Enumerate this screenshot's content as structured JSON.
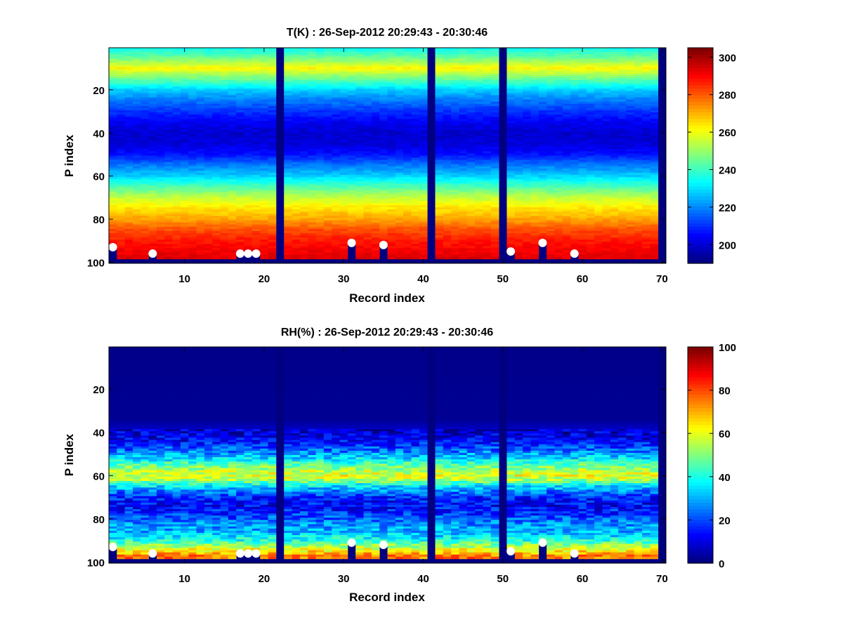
{
  "chart_data": [
    {
      "type": "heatmap",
      "title": "T(K) : 26-Sep-2012 20:29:43 - 20:30:46",
      "xlabel": "Record index",
      "ylabel": "P index",
      "xlim": [
        0.5,
        70.5
      ],
      "ylim": [
        0.5,
        100.5
      ],
      "y_reversed": true,
      "colormap": "jet",
      "clim": [
        190,
        305
      ],
      "x_ticks": [
        "10",
        "20",
        "30",
        "40",
        "50",
        "60",
        "70"
      ],
      "y_ticks": [
        "20",
        "40",
        "60",
        "80",
        "100"
      ],
      "colorbar_ticks": [
        "200",
        "220",
        "240",
        "260",
        "280",
        "300"
      ],
      "missing_records": [
        22,
        41,
        50,
        70
      ],
      "bottom_level_index": 98,
      "profile": {
        "p_index": [
          1,
          5,
          10,
          15,
          20,
          25,
          30,
          35,
          40,
          45,
          50,
          55,
          60,
          65,
          70,
          75,
          80,
          85,
          90,
          95,
          98
        ],
        "value": [
          235,
          245,
          262,
          245,
          228,
          218,
          210,
          203,
          199,
          200,
          206,
          218,
          228,
          242,
          255,
          265,
          272,
          282,
          288,
          292,
          294
        ]
      },
      "markers": [
        {
          "record": 1,
          "p_index": 93
        },
        {
          "record": 6,
          "p_index": 96
        },
        {
          "record": 17,
          "p_index": 96
        },
        {
          "record": 18,
          "p_index": 96
        },
        {
          "record": 19,
          "p_index": 96
        },
        {
          "record": 31,
          "p_index": 91
        },
        {
          "record": 35,
          "p_index": 92
        },
        {
          "record": 51,
          "p_index": 95
        },
        {
          "record": 55,
          "p_index": 91
        },
        {
          "record": 59,
          "p_index": 96
        }
      ],
      "marker_color": "#ffffff"
    },
    {
      "type": "heatmap",
      "title": "RH(%) : 26-Sep-2012 20:29:43 - 20:30:46",
      "xlabel": "Record index",
      "ylabel": "P index",
      "xlim": [
        0.5,
        70.5
      ],
      "ylim": [
        0.5,
        100.5
      ],
      "y_reversed": true,
      "colormap": "jet",
      "clim": [
        0,
        100
      ],
      "x_ticks": [
        "10",
        "20",
        "30",
        "40",
        "50",
        "60",
        "70"
      ],
      "y_ticks": [
        "20",
        "40",
        "60",
        "80",
        "100"
      ],
      "colorbar_ticks": [
        "0",
        "20",
        "40",
        "60",
        "80",
        "100"
      ],
      "missing_records": [
        22,
        41,
        50,
        70
      ],
      "bottom_level_index": 98,
      "profile": {
        "p_index": [
          1,
          34,
          38,
          44,
          48,
          52,
          55,
          58,
          60,
          62,
          64,
          67,
          70,
          74,
          78,
          82,
          86,
          90,
          94,
          97
        ],
        "value": [
          1,
          2,
          6,
          12,
          22,
          34,
          46,
          56,
          60,
          54,
          40,
          26,
          16,
          12,
          18,
          26,
          30,
          40,
          60,
          75
        ]
      },
      "markers": [
        {
          "record": 1,
          "p_index": 93
        },
        {
          "record": 6,
          "p_index": 96
        },
        {
          "record": 17,
          "p_index": 96
        },
        {
          "record": 18,
          "p_index": 96
        },
        {
          "record": 19,
          "p_index": 96
        },
        {
          "record": 31,
          "p_index": 91
        },
        {
          "record": 35,
          "p_index": 92
        },
        {
          "record": 51,
          "p_index": 95
        },
        {
          "record": 55,
          "p_index": 91
        },
        {
          "record": 59,
          "p_index": 96
        }
      ],
      "marker_color": "#ffffff"
    }
  ]
}
